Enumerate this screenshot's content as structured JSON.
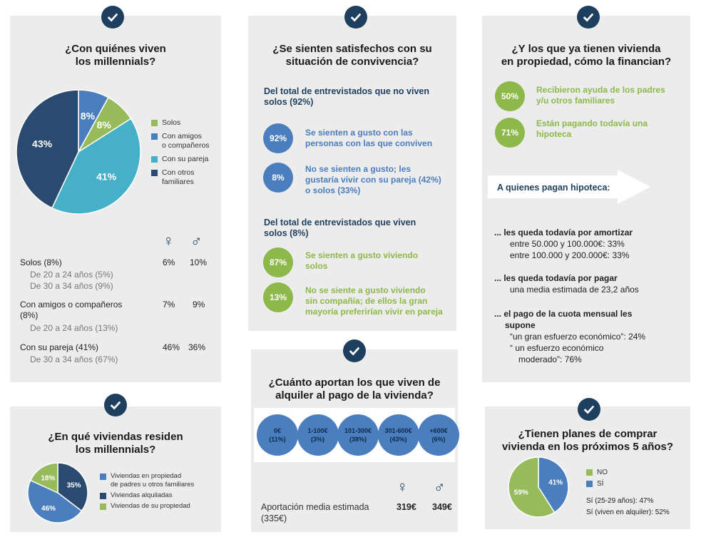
{
  "panel1": {
    "title_l1": "¿Con quiénes viven",
    "title_l2": "los millennials?",
    "chart_data": {
      "type": "pie",
      "labels": [
        "Solos",
        "Con amigos o compañeros",
        "Con su pareja",
        "Con otros familiares"
      ],
      "values": [
        8,
        8,
        41,
        43
      ],
      "value_labels": [
        "8%",
        "8%",
        "41%",
        "43%"
      ],
      "colors": [
        "#97bb5a",
        "#4a7ebf",
        "#46b0c8",
        "#2b4a70"
      ],
      "legend_placement": "right"
    },
    "legend": [
      {
        "text": "Solos",
        "color": "#97bb5a"
      },
      {
        "text": "Con amigos",
        "text2": "o compañeros",
        "color": "#4a7ebf"
      },
      {
        "text": "Con su pareja",
        "color": "#46b0c8"
      },
      {
        "text": "Con otros",
        "text2": "familiares",
        "color": "#2b4a70"
      }
    ],
    "female_symbol": "♀",
    "male_symbol": "♂",
    "rows": [
      {
        "label": "Solos (8%)",
        "f": "6%",
        "m": "10%"
      },
      {
        "label": "Con amigos o compañeros",
        "label2": "(8%)",
        "f": "7%",
        "m": "9%"
      },
      {
        "label": "Con su pareja (41%)",
        "f": "46%",
        "m": "36%"
      }
    ],
    "subs": [
      "De 20 a 24 años (5%)",
      "De 30 a 34 años (9%)",
      "De 20 a 24 años (13%)",
      "De 30 a 34 años (67%)"
    ]
  },
  "panel2": {
    "title_l1": "¿Se sienten satisfechos con su",
    "title_l2": "situación de convivencia?",
    "h1_l1": "Del total de entrevistados que no viven",
    "h1_l2": "solos (92%)",
    "items1": [
      {
        "pct": "92%",
        "t1": "Se sienten a gusto con las",
        "t2": "personas con las que conviven"
      },
      {
        "pct": "8%",
        "t1": "No se sienten a gusto; les",
        "t2": "gustaría vivir con su pareja (42%)",
        "t3": " o solos (33%)"
      }
    ],
    "h2_l1": "Del total de entrevistados que viven",
    "h2_l2": "solos (8%)",
    "items2": [
      {
        "pct": "87%",
        "t1": "Se sienten a gusto viviendo",
        "t2": "solos"
      },
      {
        "pct": "13%",
        "t1": "No se siente a gusto viviendo",
        "t2": "sin compañía; de ellos la gran",
        "t3": "mayoría preferirían vivir en pareja"
      }
    ]
  },
  "panel3": {
    "title_l1": "¿Y los que ya tienen vivienda",
    "title_l2": "en propiedad, cómo la financian?",
    "items": [
      {
        "pct": "50%",
        "t1": "Recibieron ayuda de los padres",
        "t2": "y/u otros familiares"
      },
      {
        "pct": "71%",
        "t1": "Están pagando todavía una",
        "t2": "hipoteca"
      }
    ],
    "arrow_text": "A quienes pagan hipoteca:",
    "s1_head": "... les queda todavía por amortizar",
    "s1_l1": "entre 50.000 y 100.000€: 33%",
    "s1_l2": "entre 100.000 y 200.000€: 33%",
    "s2_head": "... les queda todavía por pagar",
    "s2_l1": "una media estimada de 23,2 años",
    "s3_head_l1": "... el pago de la cuota mensual les",
    "s3_head_l2": "supone",
    "s3_l1": "“un gran esfuerzo económico”: 24%",
    "s3_l2": "“ un esfuerzo económico",
    "s3_l3": "moderado”: 76%"
  },
  "panel4": {
    "title_l1": "¿En qué viviendas residen",
    "title_l2": "los millennials?",
    "chart_data": {
      "type": "pie",
      "labels": [
        "Viviendas en propiedad de padres u otros familiares",
        "Viviendas alquiladas",
        "Viviendas de su propiedad"
      ],
      "values": [
        46,
        35,
        18
      ],
      "value_labels": [
        "46%",
        "35%",
        "18%"
      ],
      "colors": [
        "#4a7ebf",
        "#2b4a70",
        "#97bb5a"
      ],
      "legend_placement": "right"
    },
    "legend": [
      {
        "text": "Viviendas en propiedad",
        "text2": "de padres u otros familiares",
        "color": "#4a7ebf"
      },
      {
        "text": "Viviendas alquiladas",
        "color": "#2b4a70"
      },
      {
        "text": "Viviendas de su propiedad",
        "color": "#97bb5a"
      }
    ]
  },
  "panel5": {
    "title_l1": "¿Cuánto aportan los que viven de",
    "title_l2": "alquiler al pago de la vivienda?",
    "chart_data": {
      "type": "table",
      "categories": [
        "0€",
        "1-100€",
        "101-300€",
        "301-600€",
        "+600€"
      ],
      "values": [
        11,
        3,
        38,
        43,
        6
      ],
      "value_labels": [
        "(11%)",
        "(3%)",
        "(38%)",
        "(43%)",
        "(6%)"
      ]
    },
    "avg_l1": "Aportación media estimada",
    "avg_l2": "(335€)",
    "female_symbol": "♀",
    "male_symbol": "♂",
    "f_val": "319€",
    "m_val": "349€"
  },
  "panel6": {
    "title_l1": "¿Tienen planes de comprar",
    "title_l2": "vivienda en los próximos 5 años?",
    "chart_data": {
      "type": "pie",
      "labels": [
        "NO",
        "SÍ"
      ],
      "values": [
        59,
        41
      ],
      "value_labels": [
        "59%",
        "41%"
      ],
      "colors": [
        "#97bb5a",
        "#4a7ebf"
      ],
      "legend_placement": "right"
    },
    "legend": [
      {
        "text": "NO",
        "color": "#97bb5a"
      },
      {
        "text": "SÍ",
        "color": "#4a7ebf"
      }
    ],
    "note1": "Sí (25-29 años): 47%",
    "note2": "Sí (viven en alquiler): 52%"
  }
}
